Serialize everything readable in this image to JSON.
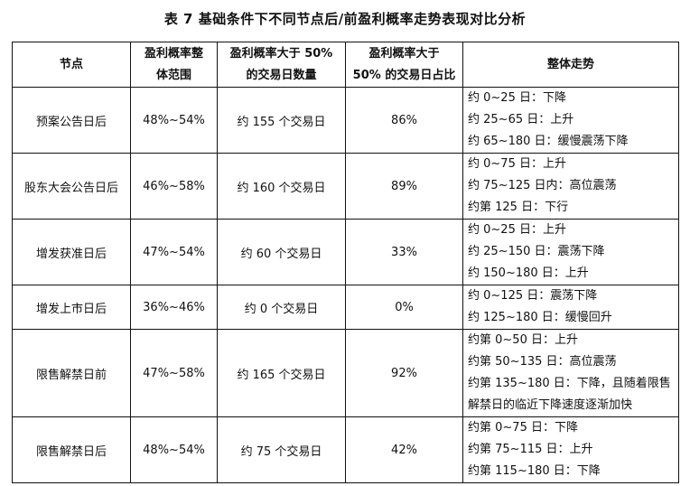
{
  "title": "表 7 基础条件下不同节点后/前盈利概率走势表现对比分析",
  "headers": [
    [
      "节点"
    ],
    [
      "盈利概率整",
      "体范围"
    ],
    [
      "盈利概率大于 50%",
      "的交易日数量"
    ],
    [
      "盈利概率大于",
      "50% 的交易日占比"
    ],
    [
      "整体走势"
    ]
  ],
  "rows": [
    {
      "node": "预案公告日后",
      "range": "48%~54%",
      "days": "约 155 个交易日",
      "ratio": "86%",
      "trend": [
        "约 0~25 日：下降",
        "约 25~65 日：上升",
        "约 65~180 日：缓慢震荡下降"
      ]
    },
    {
      "node": "股东大会公告日后",
      "range": "46%~58%",
      "days": "约 160 个交易日",
      "ratio": "89%",
      "trend": [
        "约 0~75 日：上升",
        "约 75~125 日内：高位震荡",
        "约第 125 日：下行"
      ]
    },
    {
      "node": "增发获准日后",
      "range": "47%~54%",
      "days": "约 60 个交易日",
      "ratio": "33%",
      "trend": [
        "约 0~25 日：上升",
        "约 25~150 日：震荡下降",
        "约 150~180 日：上升"
      ]
    },
    {
      "node": "增发上市日后",
      "range": "36%~46%",
      "days": "约 0 个交易日",
      "ratio": "0%",
      "trend": [
        "约 0~125 日：震荡下降",
        "约 125~180 日：缓慢回升"
      ]
    },
    {
      "node": "限售解禁日前",
      "range": "47%~58%",
      "days": "约 165 个交易日",
      "ratio": "92%",
      "trend": [
        "约第 0~50 日：上升",
        "约第 50~135 日：高位震荡",
        "约第 135~180 日：下降，且随着限售解禁日的临近下降速度逐渐加快"
      ]
    },
    {
      "node": "限售解禁日后",
      "range": "48%~54%",
      "days": "约 75 个交易日",
      "ratio": "42%",
      "trend": [
        "约第 0~75 日：下降",
        "约第 75~115 日：上升",
        "约第 115~180 日：下降"
      ]
    }
  ]
}
